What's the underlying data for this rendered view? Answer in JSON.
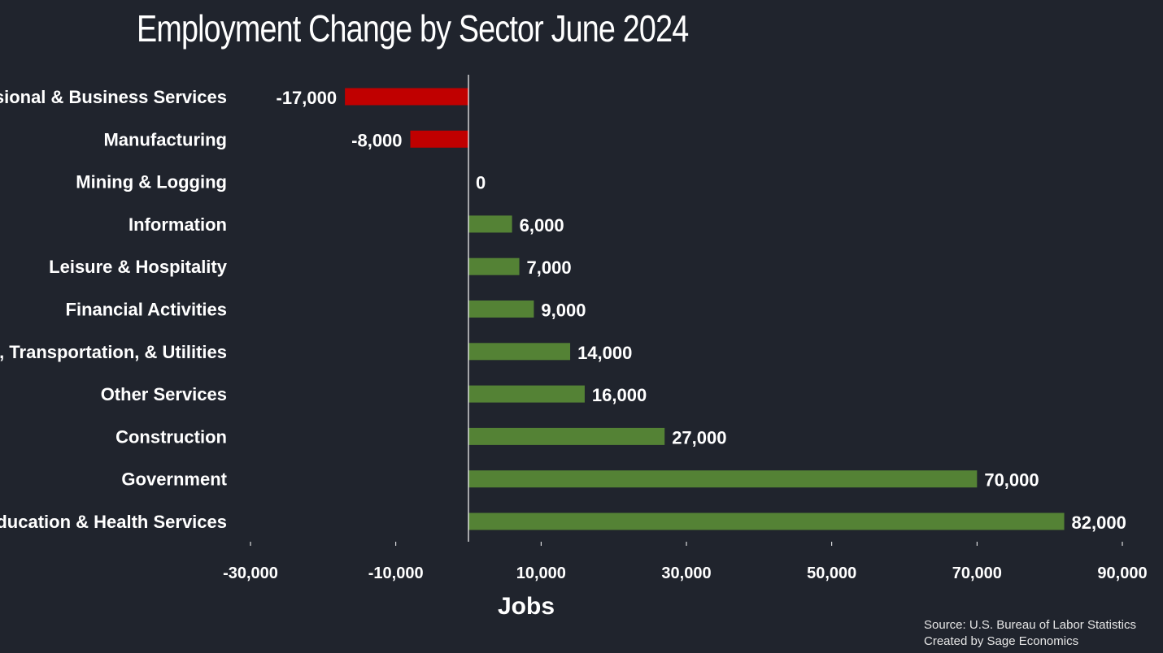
{
  "chart_data": {
    "type": "bar",
    "orientation": "horizontal",
    "title": "Employment Change by Sector June 2024",
    "xlabel": "Jobs",
    "ylabel": "",
    "categories": [
      "Professional & Business Services",
      "Manufacturing",
      "Mining & Logging",
      "Information",
      "Leisure & Hospitality",
      "Financial Activities",
      "Trade, Transportation, & Utilities",
      "Other Services",
      "Construction",
      "Government",
      "Education & Health Services"
    ],
    "values": [
      -17000,
      -8000,
      0,
      6000,
      7000,
      9000,
      14000,
      16000,
      27000,
      70000,
      82000
    ],
    "data_labels": [
      "-17,000",
      "-8,000",
      "0",
      "6,000",
      "7,000",
      "9,000",
      "14,000",
      "16,000",
      "27,000",
      "70,000",
      "82,000"
    ],
    "xlim": [
      -30000,
      90000
    ],
    "xticks": [
      -30000,
      -10000,
      10000,
      30000,
      50000,
      70000,
      90000
    ],
    "xtick_labels": [
      "-30,000",
      "-10,000",
      "10,000",
      "30,000",
      "50,000",
      "70,000",
      "90,000"
    ],
    "grid": false,
    "legend": "none",
    "colors": {
      "positive": "#548235",
      "negative": "#c00000",
      "background": "#20242d",
      "axis": "#ffffff"
    }
  },
  "footer": {
    "source": "Source: U.S. Bureau of Labor Statistics",
    "credit": "Created by Sage Economics"
  }
}
